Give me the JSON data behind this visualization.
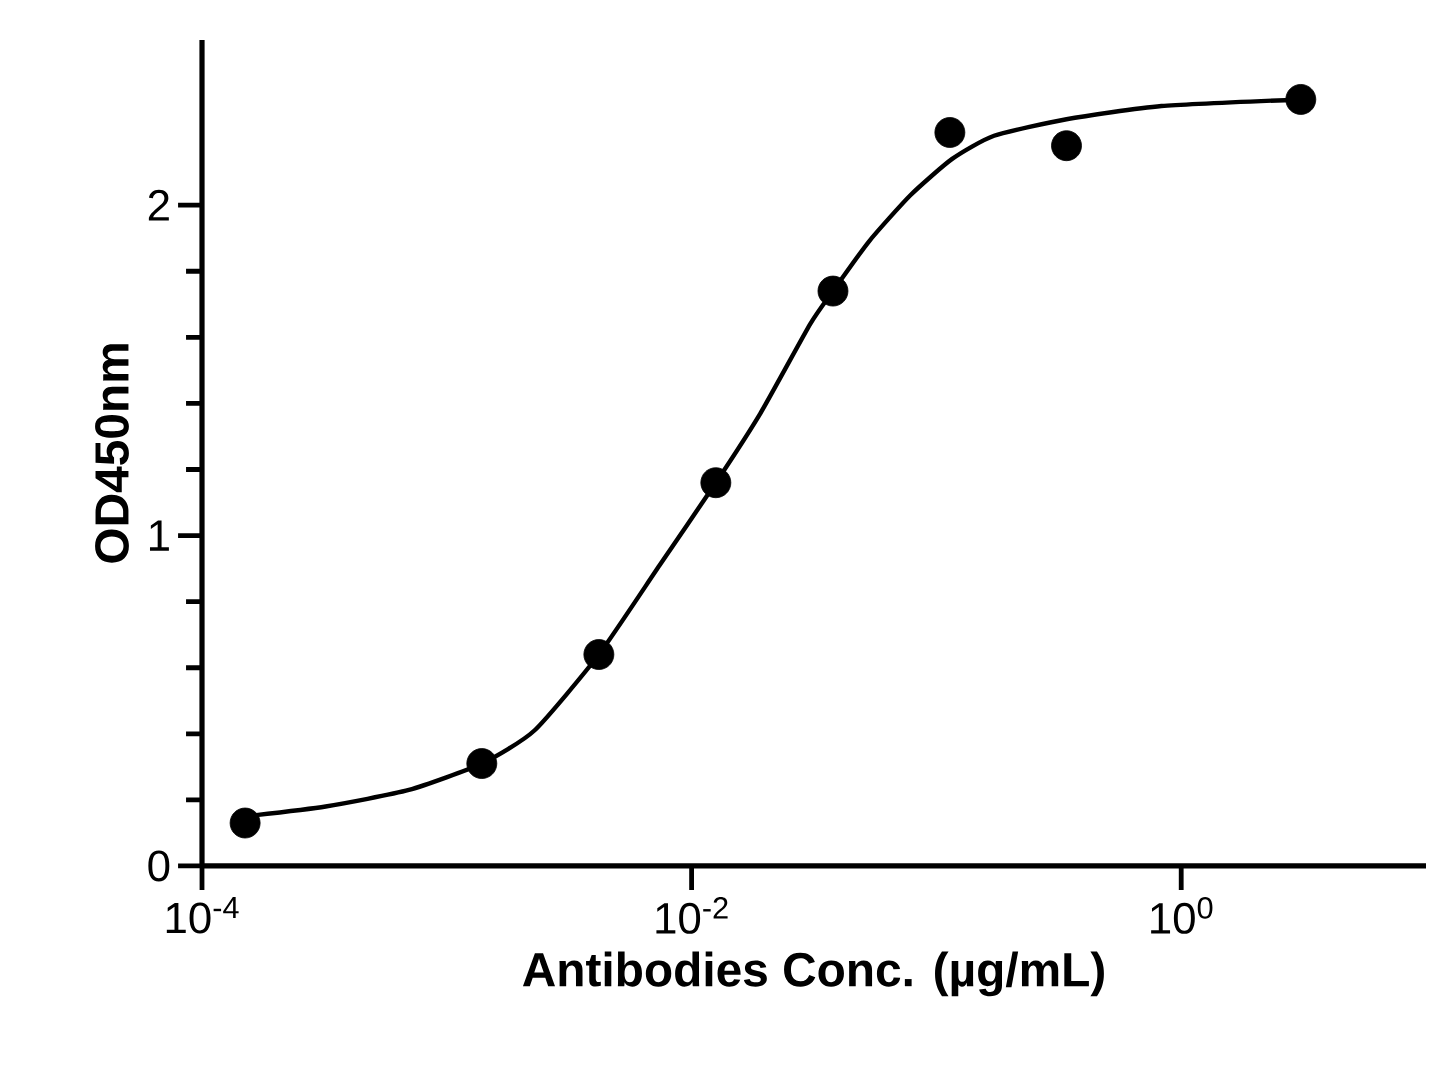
{
  "chart_data": {
    "type": "scatter",
    "xlabel": "Antibodies Conc. (µg/mL)",
    "ylabel": "OD450nm",
    "log": "x",
    "xlim": [
      0.0001,
      10
    ],
    "ylim": [
      0,
      2.5
    ],
    "xticks": [
      {
        "value": 0.0001,
        "label": "10$^{-4}$"
      },
      {
        "value": 0.01,
        "label": "10$^{-2}$"
      },
      {
        "value": 1,
        "label": "10$^{0}$"
      }
    ],
    "yticks": [
      0,
      1,
      2
    ],
    "grid": false,
    "marker": "circle",
    "series": [
      {
        "color": "#000000",
        "x": [
          0.00015,
          0.00139,
          0.00418,
          0.01256,
          0.0378,
          0.1135,
          0.34,
          3.08
        ],
        "values": [
          0.13,
          0.31,
          0.64,
          1.16,
          1.74,
          2.22,
          2.18,
          2.32
        ]
      },
      {
        "type": "line",
        "color": "#000000",
        "marker": "none",
        "line_style": "solid",
        "x": [
          0.00015,
          0.00032,
          0.0007,
          0.00139,
          0.00228,
          0.00418,
          0.0074,
          0.01256,
          0.0191,
          0.0305,
          0.0378,
          0.053,
          0.0783,
          0.116,
          0.172,
          0.34,
          0.83,
          3.08
        ],
        "values": [
          0.15,
          0.18,
          0.23,
          0.31,
          0.41,
          0.64,
          0.91,
          1.16,
          1.37,
          1.64,
          1.74,
          1.89,
          2.03,
          2.14,
          2.21,
          2.26,
          2.3,
          2.32
        ]
      }
    ]
  }
}
